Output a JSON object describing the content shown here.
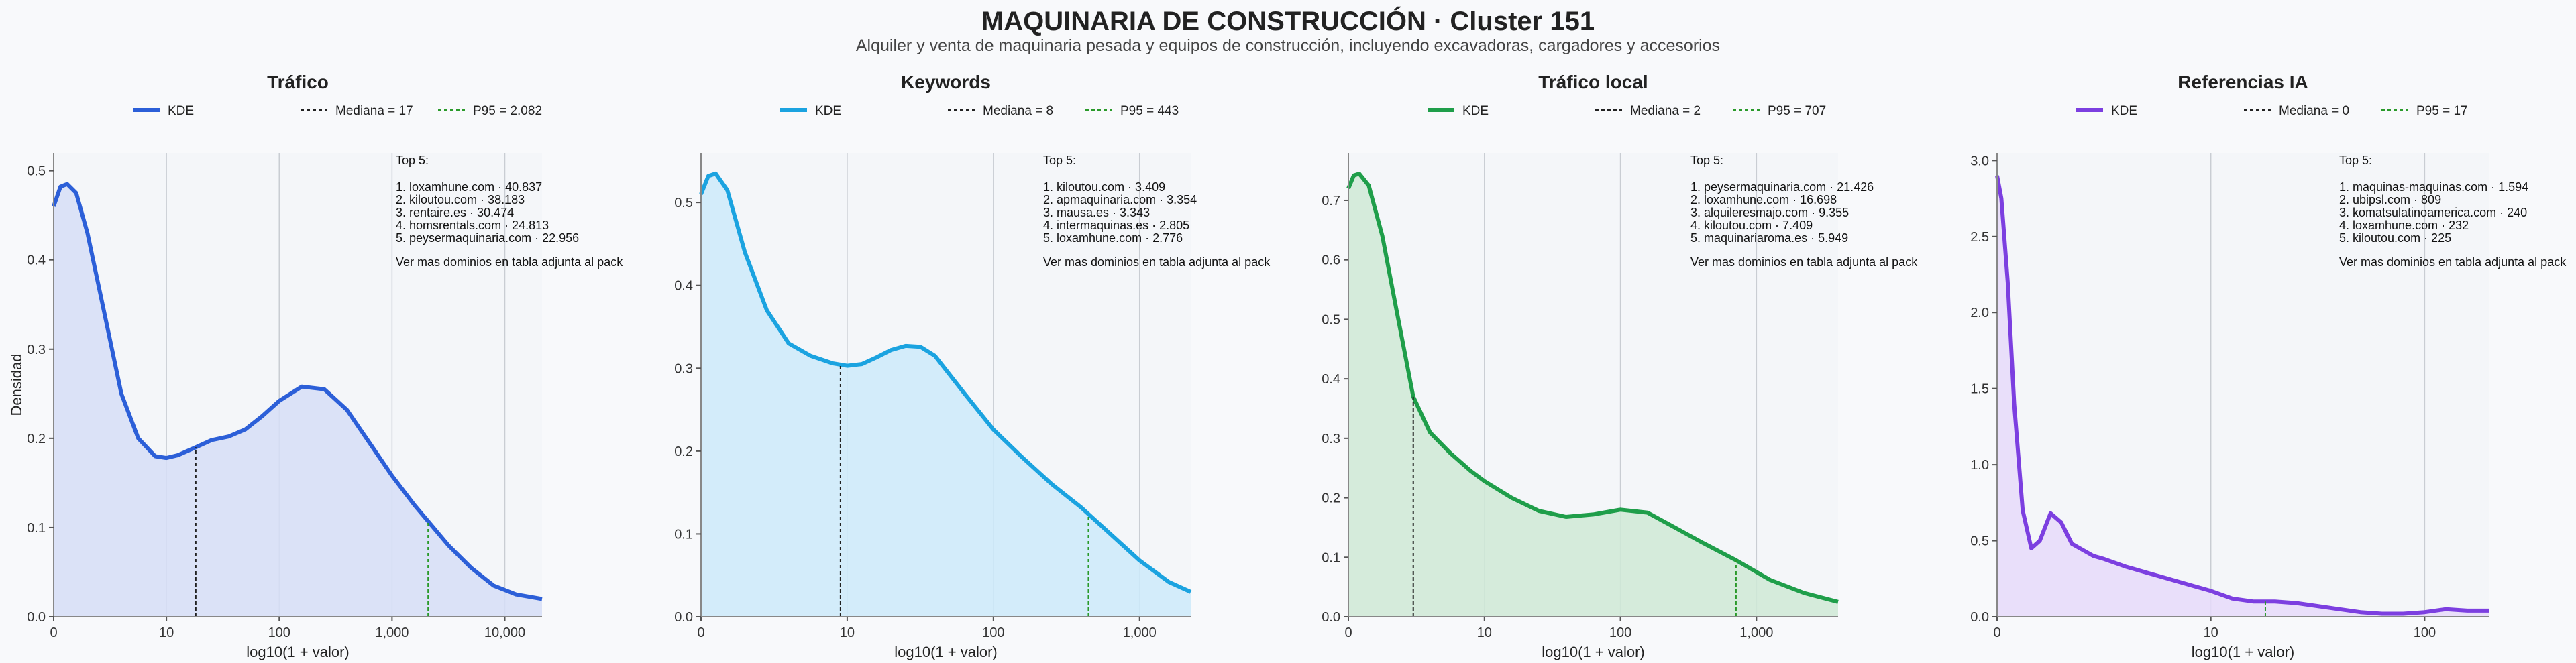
{
  "title": "MAQUINARIA DE CONSTRUCCIÓN · Cluster 151",
  "subtitle": "Alquiler y venta de maquinaria pesada y equipos de construcción, incluyendo excavadoras, cargadores y accesorios",
  "colors": {
    "trafico": "#2c5fd8",
    "keywords": "#1ba3e0",
    "trafico_local": "#1f9e4a",
    "referencias_ia": "#7c3fe0",
    "p95_line": "#2a9a2a",
    "median_line": "#222222"
  },
  "chart_data": [
    {
      "type": "area",
      "title": "Tráfico",
      "ylabel": "Densidad",
      "xlabel": "log10(1 + valor)",
      "x_scale": "log10(1+x)",
      "x_range": [
        0,
        4.33
      ],
      "ylim": [
        0,
        0.52
      ],
      "yticks": [
        0.0,
        0.1,
        0.2,
        0.3,
        0.4,
        0.5
      ],
      "ytick_labels": [
        "0.0",
        "0.1",
        "0.2",
        "0.3",
        "0.4",
        "0.5"
      ],
      "xtick_positions": [
        0,
        1,
        2,
        3,
        4
      ],
      "xtick_labels": [
        "0",
        "10",
        "100",
        "1,000",
        "10,000"
      ],
      "legend": [
        "KDE",
        "Mediana = 17",
        "P95 = 2.082"
      ],
      "median": {
        "value": 17,
        "x": 1.26
      },
      "p95": {
        "value": 2082,
        "x": 3.32
      },
      "top5_title": "Top 5:",
      "top5": [
        "1. loxamhune.com · 40.837",
        "2. kiloutou.com · 38.183",
        "3. rentaire.es · 30.474",
        "4. homsrentals.com · 24.813",
        "5. peysermaquinaria.com · 22.956"
      ],
      "footer_note": "Ver mas dominios en tabla adjunta al pack",
      "x": [
        0,
        0.06,
        0.12,
        0.2,
        0.3,
        0.45,
        0.6,
        0.75,
        0.9,
        1.0,
        1.1,
        1.26,
        1.4,
        1.55,
        1.7,
        1.85,
        2.0,
        2.2,
        2.4,
        2.6,
        2.8,
        3.0,
        3.2,
        3.32,
        3.5,
        3.7,
        3.9,
        4.1,
        4.33
      ],
      "y": [
        0.46,
        0.482,
        0.485,
        0.475,
        0.43,
        0.34,
        0.25,
        0.2,
        0.18,
        0.178,
        0.181,
        0.19,
        0.198,
        0.202,
        0.21,
        0.225,
        0.242,
        0.258,
        0.255,
        0.232,
        0.195,
        0.158,
        0.125,
        0.107,
        0.08,
        0.055,
        0.035,
        0.025,
        0.02
      ]
    },
    {
      "type": "area",
      "title": "Keywords",
      "ylabel": "",
      "xlabel": "log10(1 + valor)",
      "x_scale": "log10(1+x)",
      "x_range": [
        0,
        3.35
      ],
      "ylim": [
        0,
        0.56
      ],
      "yticks": [
        0.0,
        0.1,
        0.2,
        0.3,
        0.4,
        0.5
      ],
      "ytick_labels": [
        "0.0",
        "0.1",
        "0.2",
        "0.3",
        "0.4",
        "0.5"
      ],
      "xtick_positions": [
        0,
        1,
        2,
        3
      ],
      "xtick_labels": [
        "0",
        "10",
        "100",
        "1,000"
      ],
      "legend": [
        "KDE",
        "Mediana = 8",
        "P95 = 443"
      ],
      "median": {
        "value": 8,
        "x": 0.954
      },
      "p95": {
        "value": 443,
        "x": 2.65
      },
      "top5_title": "Top 5:",
      "top5": [
        "1. kiloutou.com · 3.409",
        "2. apmaquinaria.com · 3.354",
        "3. mausa.es · 3.343",
        "4. intermaquinas.es · 2.805",
        "5. loxamhune.com · 2.776"
      ],
      "footer_note": "Ver mas dominios en tabla adjunta al pack",
      "x": [
        0,
        0.05,
        0.1,
        0.18,
        0.3,
        0.45,
        0.6,
        0.75,
        0.9,
        1.0,
        1.1,
        1.2,
        1.3,
        1.4,
        1.5,
        1.6,
        1.8,
        2.0,
        2.2,
        2.4,
        2.6,
        2.8,
        3.0,
        3.2,
        3.35
      ],
      "y": [
        0.51,
        0.532,
        0.535,
        0.515,
        0.44,
        0.37,
        0.33,
        0.315,
        0.306,
        0.303,
        0.305,
        0.313,
        0.322,
        0.327,
        0.326,
        0.315,
        0.27,
        0.226,
        0.192,
        0.16,
        0.132,
        0.1,
        0.068,
        0.042,
        0.03
      ]
    },
    {
      "type": "area",
      "title": "Tráfico local",
      "ylabel": "",
      "xlabel": "log10(1 + valor)",
      "x_scale": "log10(1+x)",
      "x_range": [
        0,
        3.6
      ],
      "ylim": [
        0,
        0.78
      ],
      "yticks": [
        0.0,
        0.1,
        0.2,
        0.3,
        0.4,
        0.5,
        0.6,
        0.7
      ],
      "ytick_labels": [
        "0.0",
        "0.1",
        "0.2",
        "0.3",
        "0.4",
        "0.5",
        "0.6",
        "0.7"
      ],
      "xtick_positions": [
        0,
        1,
        2,
        3
      ],
      "xtick_labels": [
        "0",
        "10",
        "100",
        "1,000"
      ],
      "legend": [
        "KDE",
        "Mediana = 2",
        "P95 = 707"
      ],
      "median": {
        "value": 2,
        "x": 0.477
      },
      "p95": {
        "value": 707,
        "x": 2.85
      },
      "top5_title": "Top 5:",
      "top5": [
        "1. peysermaquinaria.com · 21.426",
        "2. loxamhune.com · 16.698",
        "3. alquileresmajo.com · 9.355",
        "4. kiloutou.com · 7.409",
        "5. maquinariaroma.es · 5.949"
      ],
      "footer_note": "Ver mas dominios en tabla adjunta al pack",
      "x": [
        0,
        0.04,
        0.08,
        0.15,
        0.25,
        0.35,
        0.477,
        0.6,
        0.75,
        0.9,
        1.0,
        1.2,
        1.4,
        1.6,
        1.8,
        2.0,
        2.2,
        2.4,
        2.6,
        2.85,
        3.1,
        3.35,
        3.6
      ],
      "y": [
        0.72,
        0.742,
        0.745,
        0.725,
        0.64,
        0.52,
        0.37,
        0.31,
        0.275,
        0.245,
        0.228,
        0.2,
        0.178,
        0.168,
        0.172,
        0.18,
        0.175,
        0.15,
        0.125,
        0.095,
        0.062,
        0.04,
        0.025
      ]
    },
    {
      "type": "area",
      "title": "Referencias IA",
      "ylabel": "",
      "xlabel": "log10(1 + valor)",
      "x_scale": "log10(1+x)",
      "x_range": [
        0,
        2.3
      ],
      "ylim": [
        0,
        3.05
      ],
      "yticks": [
        0.0,
        0.5,
        1.0,
        1.5,
        2.0,
        2.5,
        3.0
      ],
      "ytick_labels": [
        "0.0",
        "0.5",
        "1.0",
        "1.5",
        "2.0",
        "2.5",
        "3.0"
      ],
      "xtick_positions": [
        0,
        1,
        2
      ],
      "xtick_labels": [
        "0",
        "10",
        "100"
      ],
      "legend": [
        "KDE",
        "Mediana = 0",
        "P95 = 17"
      ],
      "median": {
        "value": 0,
        "x": 0
      },
      "p95": {
        "value": 17,
        "x": 1.255
      },
      "top5_title": "Top 5:",
      "top5": [
        "1. maquinas-maquinas.com · 1.594",
        "2. ubipsl.com · 809",
        "3. komatsulatinoamerica.com · 240",
        "4. loxamhune.com · 232",
        "5. kiloutou.com · 225"
      ],
      "footer_note": "Ver mas dominios en tabla adjunta al pack",
      "x": [
        0,
        0.02,
        0.05,
        0.08,
        0.12,
        0.16,
        0.2,
        0.25,
        0.3,
        0.35,
        0.4,
        0.45,
        0.5,
        0.6,
        0.7,
        0.8,
        0.9,
        1.0,
        1.1,
        1.2,
        1.3,
        1.4,
        1.5,
        1.6,
        1.7,
        1.8,
        1.9,
        2.0,
        2.1,
        2.2,
        2.3
      ],
      "y": [
        2.9,
        2.75,
        2.2,
        1.4,
        0.7,
        0.45,
        0.5,
        0.68,
        0.62,
        0.48,
        0.44,
        0.4,
        0.38,
        0.33,
        0.29,
        0.25,
        0.21,
        0.17,
        0.12,
        0.1,
        0.1,
        0.09,
        0.07,
        0.05,
        0.03,
        0.02,
        0.02,
        0.03,
        0.05,
        0.04,
        0.04
      ]
    }
  ]
}
